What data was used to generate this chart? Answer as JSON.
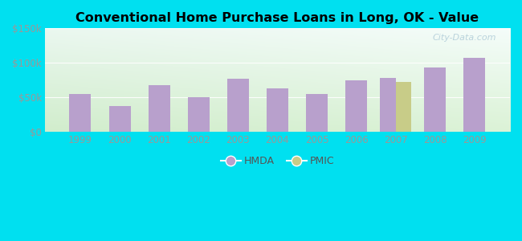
{
  "title": "Conventional Home Purchase Loans in Long, OK - Value",
  "years": [
    1999,
    2000,
    2001,
    2002,
    2003,
    2004,
    2005,
    2006,
    2007,
    2008,
    2009
  ],
  "hmda_values": [
    55000,
    37000,
    68000,
    50000,
    77000,
    63000,
    55000,
    75000,
    78000,
    93000,
    107000
  ],
  "pmic_values": [
    0,
    0,
    0,
    0,
    0,
    0,
    0,
    0,
    72000,
    0,
    0
  ],
  "hmda_color": "#b8a0cc",
  "pmic_color": "#c8cc88",
  "bg_outer": "#00e0f0",
  "bg_plot_top_left": "#e8f5f0",
  "bg_plot_top_right": "#f0f8f8",
  "bg_plot_bottom": "#d0eecc",
  "ylim": [
    0,
    150000
  ],
  "yticks": [
    0,
    50000,
    100000,
    150000
  ],
  "ytick_labels": [
    "$0",
    "$50k",
    "$100k",
    "$150k"
  ],
  "single_bar_width": 0.55,
  "pair_bar_width": 0.4,
  "watermark": "City-Data.com",
  "tick_color": "#999999",
  "grid_color": "#e8e8e8"
}
